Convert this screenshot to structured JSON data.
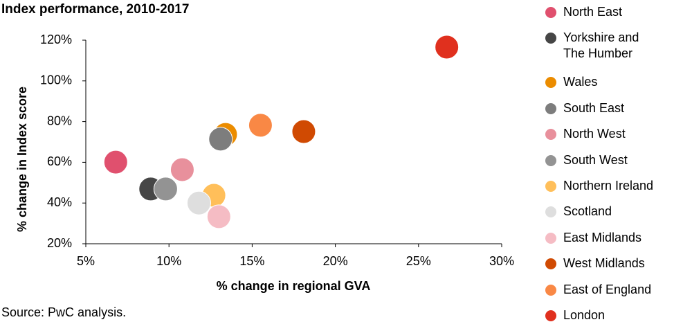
{
  "chart_data": {
    "type": "scatter",
    "title": "Index performance, 2010-2017",
    "x_label": "% change in regional GVA",
    "y_label": "% change in Index score",
    "source": "Source: PwC analysis.",
    "xlim": [
      5,
      30
    ],
    "ylim": [
      20,
      120
    ],
    "xticks": [
      {
        "value": 5,
        "label": "5%"
      },
      {
        "value": 10,
        "label": "10%"
      },
      {
        "value": 15,
        "label": "15%"
      },
      {
        "value": 20,
        "label": "20%"
      },
      {
        "value": 25,
        "label": "25%"
      },
      {
        "value": 30,
        "label": "30%"
      }
    ],
    "yticks": [
      {
        "value": 20,
        "label": "20%"
      },
      {
        "value": 40,
        "label": "40%"
      },
      {
        "value": 60,
        "label": "60%"
      },
      {
        "value": 80,
        "label": "80%"
      },
      {
        "value": 100,
        "label": "100%"
      },
      {
        "value": 120,
        "label": "120%"
      }
    ],
    "legend_position": "right",
    "series": [
      {
        "name": "North East",
        "color": "#e0506e",
        "x": [
          6.8
        ],
        "values": [
          60.1
        ]
      },
      {
        "name": "Yorkshire and The Humber",
        "color": "#464646",
        "x": [
          8.9
        ],
        "values": [
          46.9
        ]
      },
      {
        "name": "Wales",
        "color": "#eb8c00",
        "x": [
          13.4
        ],
        "values": [
          73.7
        ]
      },
      {
        "name": "South East",
        "color": "#7d7d7d",
        "x": [
          13.1
        ],
        "values": [
          71.4
        ]
      },
      {
        "name": "North West",
        "color": "#e8909c",
        "x": [
          10.8
        ],
        "values": [
          56.4
        ]
      },
      {
        "name": "South West",
        "color": "#939393",
        "x": [
          9.8
        ],
        "values": [
          46.9
        ]
      },
      {
        "name": "Northern Ireland",
        "color": "#ffbf5a",
        "x": [
          12.7
        ],
        "values": [
          43.8
        ]
      },
      {
        "name": "Scotland",
        "color": "#dedede",
        "x": [
          11.8
        ],
        "values": [
          40.0
        ]
      },
      {
        "name": "East Midlands",
        "color": "#f5bcc4",
        "x": [
          13.0
        ],
        "values": [
          33.3
        ]
      },
      {
        "name": "West Midlands",
        "color": "#d04a02",
        "x": [
          18.1
        ],
        "values": [
          75.1
        ]
      },
      {
        "name": "East of England",
        "color": "#f98845",
        "x": [
          15.5
        ],
        "values": [
          78.2
        ]
      },
      {
        "name": "London",
        "color": "#e0301e",
        "x": [
          26.7
        ],
        "values": [
          116.6
        ]
      }
    ]
  }
}
